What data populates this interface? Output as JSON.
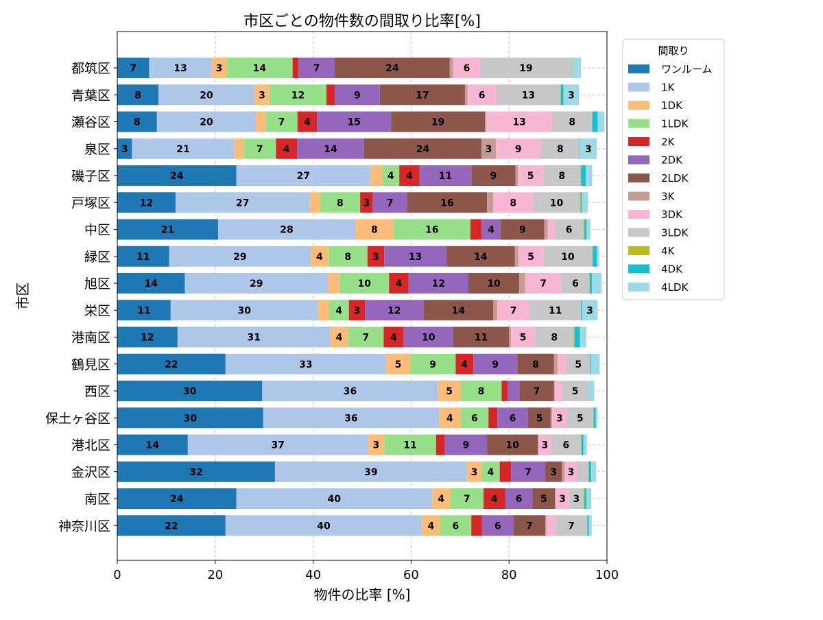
{
  "chart_data": {
    "type": "bar",
    "orientation": "horizontal",
    "stacked": true,
    "title": "市区ごとの物件数の間取り比率[%]",
    "xlabel": "物件の比率 [%]",
    "ylabel": "市区",
    "xlim": [
      0,
      100
    ],
    "xticks": [
      "0",
      "20",
      "40",
      "60",
      "80",
      "100"
    ],
    "grid": "on (dashed)",
    "legend_title": "間取り",
    "legend_position": "right, outside the plot (top)",
    "categories": [
      "都筑区",
      "青葉区",
      "瀬谷区",
      "泉区",
      "磯子区",
      "戸塚区",
      "中区",
      "緑区",
      "旭区",
      "栄区",
      "港南区",
      "鶴見区",
      "西区",
      "保土ヶ谷区",
      "港北区",
      "金沢区",
      "南区",
      "神奈川区"
    ],
    "series": [
      {
        "name": "ワンルーム",
        "color": "#1f77b4",
        "values": [
          6.5,
          8.4,
          8.1,
          3.0,
          24.3,
          11.9,
          20.6,
          10.6,
          13.8,
          10.9,
          12.3,
          22.1,
          29.6,
          29.8,
          14.4,
          32.2,
          24.3,
          22.1
        ]
      },
      {
        "name": "1K",
        "color": "#aec7e8",
        "values": [
          12.8,
          19.6,
          20.2,
          20.9,
          27.4,
          27.4,
          28.0,
          28.9,
          29.2,
          30.1,
          31.2,
          32.8,
          35.9,
          35.9,
          36.8,
          39.2,
          40.0,
          40.1
        ]
      },
      {
        "name": "1DK",
        "color": "#ffbb78",
        "values": [
          3.0,
          3.1,
          2.0,
          1.9,
          2.4,
          2.1,
          7.8,
          3.6,
          2.4,
          2.2,
          3.6,
          4.9,
          4.6,
          4.4,
          3.3,
          3.0,
          3.7,
          3.7
        ]
      },
      {
        "name": "1LDK",
        "color": "#98df8a",
        "values": [
          13.5,
          11.6,
          6.5,
          6.6,
          3.5,
          8.2,
          15.7,
          8.0,
          10.1,
          4.1,
          7.3,
          9.3,
          8.4,
          5.7,
          10.6,
          3.7,
          6.8,
          6.4
        ]
      },
      {
        "name": "2K",
        "color": "#d62728",
        "values": [
          1.2,
          1.7,
          4.0,
          4.3,
          4.1,
          2.6,
          2.3,
          3.4,
          4.0,
          3.3,
          4.1,
          3.6,
          1.2,
          1.8,
          1.8,
          2.3,
          4.4,
          2.2
        ]
      },
      {
        "name": "2DK",
        "color": "#9467bd",
        "values": [
          7.4,
          9.2,
          15.1,
          13.7,
          10.6,
          7.0,
          3.9,
          12.7,
          12.2,
          11.9,
          10.1,
          9.0,
          2.4,
          6.3,
          8.6,
          7.0,
          5.6,
          6.4
        ]
      },
      {
        "name": "2LDK",
        "color": "#8c564b",
        "values": [
          23.5,
          17.4,
          19.2,
          24.0,
          9.0,
          16.3,
          8.9,
          14.0,
          10.4,
          14.3,
          11.4,
          7.5,
          7.1,
          4.6,
          10.4,
          3.4,
          4.6,
          6.5
        ]
      },
      {
        "name": "3K",
        "color": "#c49c94",
        "values": [
          0.7,
          0.5,
          0.3,
          2.9,
          0.5,
          1.3,
          0.7,
          0.7,
          1.2,
          0.8,
          0.4,
          0.7,
          0.1,
          0.3,
          0.1,
          0.6,
          0.1,
          0.2
        ]
      },
      {
        "name": "3DK",
        "color": "#f7b6d2",
        "values": [
          5.5,
          5.9,
          13.4,
          9.2,
          5.2,
          8.1,
          1.4,
          5.1,
          7.4,
          6.6,
          4.9,
          1.8,
          1.6,
          3.0,
          2.6,
          2.5,
          2.8,
          1.8
        ]
      },
      {
        "name": "3LDK",
        "color": "#c7c7c7",
        "values": [
          18.7,
          13.1,
          8.2,
          7.9,
          7.6,
          9.6,
          5.9,
          10.0,
          5.7,
          10.5,
          7.9,
          4.9,
          5.2,
          5.4,
          6.1,
          2.3,
          2.9,
          6.6
        ]
      },
      {
        "name": "4K",
        "color": "#bcbd22",
        "values": [
          0.1,
          0.1,
          0.0,
          0.0,
          0.1,
          0.2,
          0.2,
          0.1,
          0.1,
          0.0,
          0.2,
          0.0,
          0.0,
          0.1,
          0.1,
          0.1,
          0.2,
          0.0
        ]
      },
      {
        "name": "4DK",
        "color": "#17becf",
        "values": [
          0.0,
          0.5,
          1.1,
          0.1,
          1.0,
          0.2,
          0.4,
          0.8,
          0.4,
          0.2,
          1.1,
          0.2,
          0.0,
          0.4,
          0.4,
          0.5,
          0.4,
          0.3
        ]
      },
      {
        "name": "4LDK",
        "color": "#9edae5",
        "values": [
          1.8,
          3.2,
          1.4,
          3.4,
          1.3,
          1.2,
          0.8,
          0.5,
          2.0,
          3.2,
          1.3,
          1.7,
          1.3,
          0.4,
          0.7,
          1.0,
          1.0,
          0.6
        ]
      }
    ]
  }
}
